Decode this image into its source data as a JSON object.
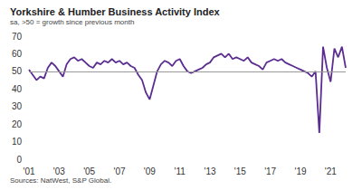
{
  "chart_data": {
    "type": "line",
    "title": "Yorkshire & Humber Business Activity Index",
    "subtitle": "sa, >50 = growth since previous month",
    "source": "Sources: NatWest, S&P Global.",
    "categories": [
      "'01",
      null,
      null,
      null,
      null,
      null,
      null,
      null,
      "'03",
      null,
      null,
      null,
      null,
      null,
      null,
      null,
      "'05",
      null,
      null,
      null,
      null,
      null,
      null,
      null,
      "'07",
      null,
      null,
      null,
      null,
      null,
      null,
      null,
      "'09",
      null,
      null,
      null,
      null,
      null,
      null,
      null,
      "'11",
      null,
      null,
      null,
      null,
      null,
      null,
      null,
      "'13",
      null,
      null,
      null,
      null,
      null,
      null,
      null,
      "'15",
      null,
      null,
      null,
      null,
      null,
      null,
      null,
      "'17",
      null,
      null,
      null,
      null,
      null,
      null,
      null,
      "'19",
      null,
      null,
      null,
      null,
      null,
      null,
      null,
      "'21",
      null,
      null,
      null,
      null
    ],
    "values": [
      51,
      48,
      45,
      47,
      46,
      52,
      55,
      53,
      50,
      47,
      54,
      57,
      58,
      56,
      57,
      55,
      53,
      52,
      55,
      54,
      56,
      55,
      57,
      55,
      56,
      54,
      55,
      53,
      52,
      48,
      45,
      38,
      34,
      42,
      50,
      54,
      56,
      55,
      53,
      56,
      57,
      53,
      50,
      49,
      50,
      51,
      52,
      54,
      55,
      58,
      59,
      60,
      58,
      60,
      57,
      58,
      57,
      56,
      58,
      55,
      54,
      53,
      51,
      55,
      56,
      57,
      56,
      57,
      55,
      54,
      53,
      52,
      51,
      50,
      49,
      47,
      50,
      15,
      64,
      52,
      44,
      63,
      58,
      64,
      52
    ],
    "reference_line": 50,
    "color": "#5c2d91",
    "ylim": [
      0,
      70
    ],
    "yticks": [
      0,
      10,
      20,
      30,
      40,
      50,
      60,
      70
    ],
    "grid": false
  }
}
